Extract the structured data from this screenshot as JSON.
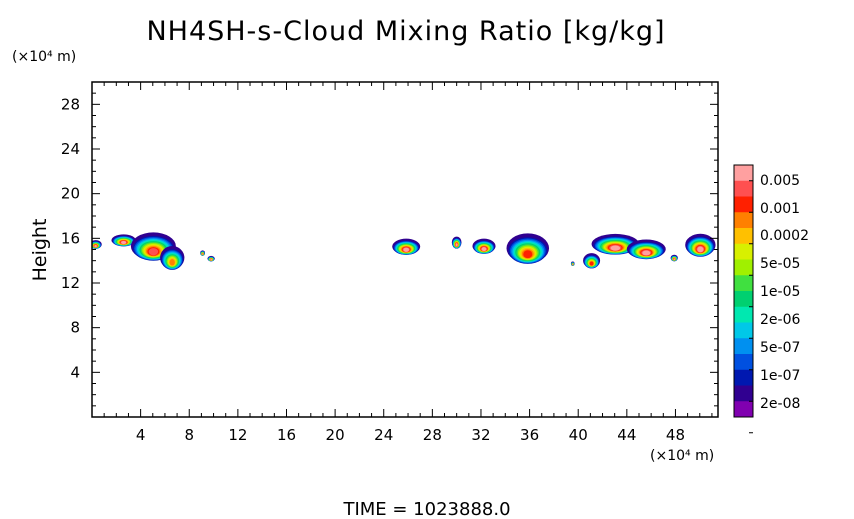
{
  "chart_data": {
    "type": "heatmap",
    "title": "NH4SH-s-Cloud Mixing Ratio [kg/kg]",
    "xlabel": "",
    "ylabel": "Height",
    "x_unit": "(×10⁴ m)",
    "y_unit": "(×10⁴ m)",
    "xlim": [
      0,
      51.5
    ],
    "ylim": [
      0,
      30
    ],
    "xticks": [
      4,
      8,
      12,
      16,
      20,
      24,
      28,
      32,
      36,
      40,
      44,
      48
    ],
    "yticks": [
      4,
      8,
      12,
      16,
      20,
      24,
      28
    ],
    "footer": "TIME = 1023888.0",
    "colorbar": {
      "labels": [
        "0.005",
        "0.001",
        "0.0002",
        "5e-05",
        "1e-05",
        "2e-06",
        "5e-07",
        "1e-07",
        "2e-08"
      ],
      "colors": [
        "#ffa0a0",
        "#ff5050",
        "#ff2000",
        "#ff8000",
        "#ffc000",
        "#d8f000",
        "#a0f000",
        "#40e040",
        "#00d070",
        "#00e8b0",
        "#00c8e8",
        "#0090f0",
        "#0050e0",
        "#0018b0",
        "#300090",
        "#8000b0"
      ]
    },
    "cloud_blobs": [
      {
        "x": [
          -0.2,
          0.8
        ],
        "y": [
          15.0,
          15.8
        ],
        "top": 7,
        "core": 0
      },
      {
        "x": [
          1.6,
          3.6
        ],
        "y": [
          15.2,
          16.3
        ],
        "top": 7,
        "core": 0
      },
      {
        "x": [
          3.2,
          6.9
        ],
        "y": [
          13.8,
          16.4
        ],
        "top": 6,
        "core": 1
      },
      {
        "x": [
          5.6,
          7.6
        ],
        "y": [
          13.0,
          15.2
        ],
        "top": 3,
        "core": 3
      },
      {
        "x": [
          8.9,
          9.3
        ],
        "y": [
          14.4,
          14.9
        ],
        "top": 8,
        "core": 0
      },
      {
        "x": [
          9.5,
          10.1
        ],
        "y": [
          13.9,
          14.4
        ],
        "top": 8,
        "core": 0
      },
      {
        "x": [
          24.7,
          27.0
        ],
        "y": [
          14.4,
          15.9
        ],
        "top": 6,
        "core": 0
      },
      {
        "x": [
          29.6,
          30.4
        ],
        "y": [
          15.0,
          16.1
        ],
        "top": 6,
        "core": 0
      },
      {
        "x": [
          31.3,
          33.2
        ],
        "y": [
          14.5,
          15.9
        ],
        "top": 6,
        "core": 0
      },
      {
        "x": [
          34.1,
          37.6
        ],
        "y": [
          13.5,
          16.3
        ],
        "top": 5,
        "core": 2
      },
      {
        "x": [
          39.4,
          39.7
        ],
        "y": [
          13.5,
          13.9
        ],
        "top": 8,
        "core": 0
      },
      {
        "x": [
          40.4,
          41.8
        ],
        "y": [
          13.2,
          14.6
        ],
        "top": 5,
        "core": 2
      },
      {
        "x": [
          41.1,
          45.0
        ],
        "y": [
          14.4,
          16.3
        ],
        "top": 6,
        "core": 0
      },
      {
        "x": [
          44.0,
          47.2
        ],
        "y": [
          14.0,
          15.8
        ],
        "top": 6,
        "core": 0
      },
      {
        "x": [
          47.6,
          48.2
        ],
        "y": [
          13.9,
          14.5
        ],
        "top": 7,
        "core": 0
      },
      {
        "x": [
          48.8,
          51.3
        ],
        "y": [
          14.2,
          16.3
        ],
        "top": 6,
        "core": 0
      }
    ]
  }
}
